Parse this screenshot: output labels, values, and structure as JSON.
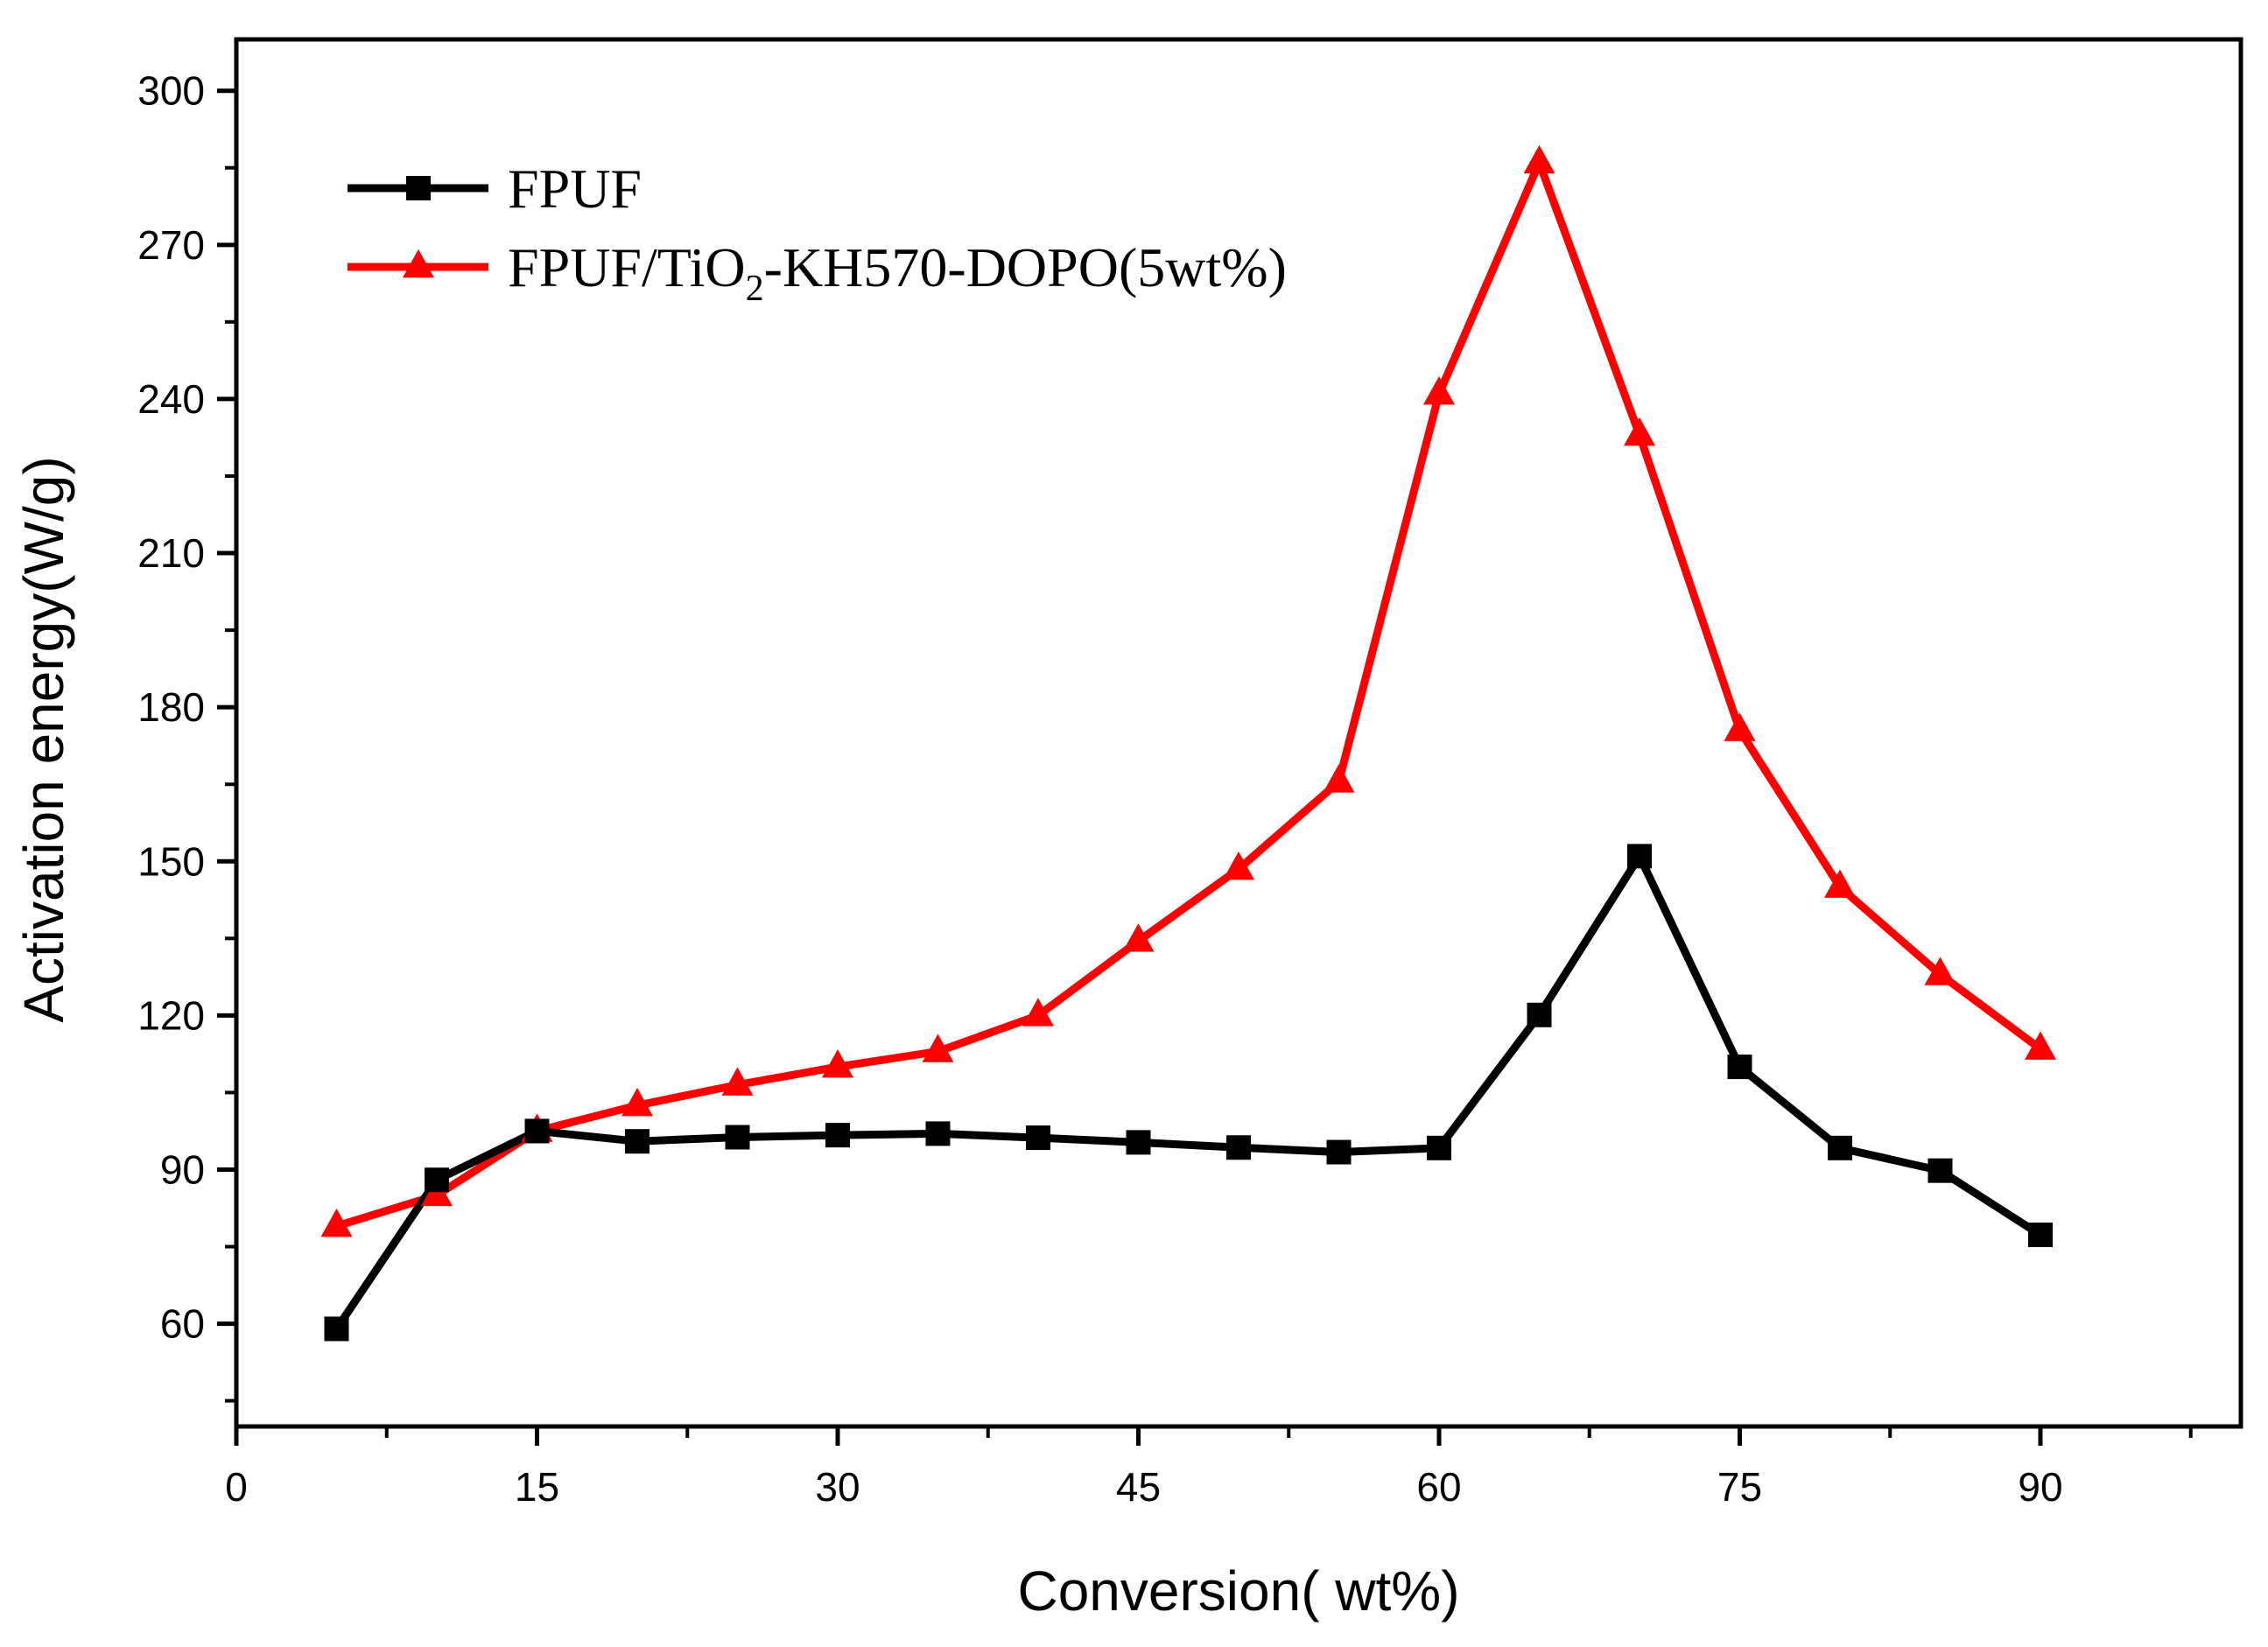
{
  "chart_data": {
    "type": "line",
    "title": "",
    "xlabel": "Conversion( wt%)",
    "ylabel": "Activation energy(W/g)",
    "xlim": [
      0,
      100
    ],
    "ylim": [
      40,
      310
    ],
    "xticks": [
      0,
      15,
      30,
      45,
      60,
      75,
      90
    ],
    "xtick_labels": [
      "0",
      "15",
      "30",
      "45",
      "60",
      "75",
      "90"
    ],
    "yticks": [
      60,
      90,
      120,
      150,
      180,
      210,
      240,
      270,
      300
    ],
    "ytick_labels": [
      "60",
      "90",
      "120",
      "150",
      "180",
      "210",
      "240",
      "270",
      "300"
    ],
    "legend_position": "top-left",
    "x": [
      5,
      10,
      15,
      20,
      25,
      30,
      35,
      40,
      45,
      50,
      55,
      60,
      65,
      70,
      75,
      80,
      85,
      90
    ],
    "series": [
      {
        "name": "FPUF",
        "color": "#000000",
        "marker": "square",
        "values": [
          59,
          88,
          97.5,
          95.5,
          96.3,
          96.7,
          97,
          96.2,
          95.3,
          94.3,
          93.4,
          94.2,
          120.1,
          151,
          110,
          94.2,
          89.8,
          77.3
        ]
      },
      {
        "name": "FPUF/TiO2-KH570-DOPO(5wt%)",
        "name_parts": [
          "FPUF/TiO",
          "2",
          "-KH570-DOPO(5wt%)"
        ],
        "color": "#ff0000",
        "marker": "triangle",
        "values": [
          79,
          85,
          97.5,
          102.5,
          106.5,
          110,
          113,
          120,
          134.5,
          148.5,
          165.5,
          241,
          286,
          233,
          175.5,
          145,
          128,
          113.5
        ]
      }
    ]
  }
}
